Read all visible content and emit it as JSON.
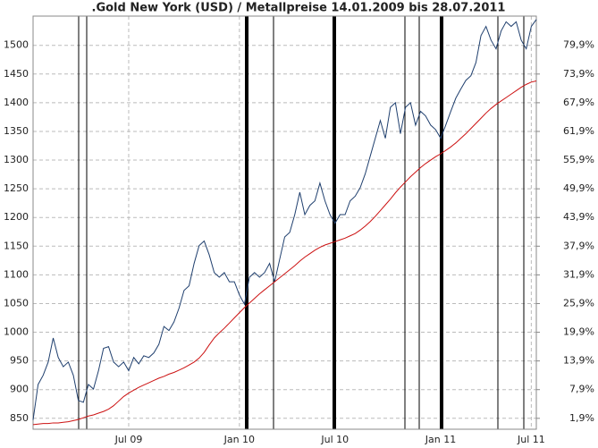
{
  "chart_data": {
    "type": "line",
    "title": ".Gold New York (USD) / Metallpreise 14.01.2009 bis 28.07.2011",
    "categories": [
      null,
      null,
      null,
      null,
      null,
      null,
      null,
      null,
      null,
      null,
      null,
      null,
      null,
      null,
      null,
      null,
      null,
      null,
      null,
      "Jul 09",
      null,
      null,
      null,
      null,
      null,
      null,
      null,
      null,
      null,
      null,
      null,
      null,
      null,
      null,
      null,
      null,
      null,
      null,
      null,
      null,
      null,
      "Jan 10",
      null,
      null,
      null,
      null,
      null,
      null,
      null,
      null,
      null,
      null,
      null,
      null,
      null,
      null,
      null,
      null,
      null,
      null,
      "Jul 10",
      null,
      null,
      null,
      null,
      null,
      null,
      null,
      null,
      null,
      null,
      null,
      null,
      null,
      null,
      null,
      null,
      null,
      null,
      null,
      null,
      "Jan 11",
      null,
      null,
      null,
      null,
      null,
      null,
      null,
      null,
      null,
      null,
      null,
      null,
      null,
      null,
      null,
      null,
      null,
      "Jul 11",
      null
    ],
    "series": [
      {
        "color": "#1f3f6e",
        "values": [
          847,
          909,
          925,
          948,
          990,
          956,
          940,
          948,
          925,
          881,
          878,
          909,
          901,
          933,
          972,
          975,
          948,
          940,
          948,
          933,
          956,
          945,
          959,
          956,
          964,
          979,
          1010,
          1003,
          1018,
          1042,
          1073,
          1081,
          1120,
          1151,
          1159,
          1135,
          1104,
          1096,
          1104,
          1088,
          1088,
          1065,
          1049,
          1096,
          1104,
          1096,
          1104,
          1120,
          1088,
          1127,
          1166,
          1174,
          1205,
          1244,
          1205,
          1221,
          1229,
          1260,
          1229,
          1205,
          1190,
          1205,
          1205,
          1229,
          1237,
          1252,
          1276,
          1307,
          1338,
          1369,
          1338,
          1392,
          1400,
          1346,
          1392,
          1400,
          1361,
          1385,
          1377,
          1361,
          1353,
          1338,
          1361,
          1385,
          1408,
          1424,
          1439,
          1447,
          1470,
          1517,
          1533,
          1509,
          1494,
          1525,
          1541,
          1533,
          1541,
          1509,
          1494,
          1533,
          1545
        ]
      },
      {
        "color": "#cc1111",
        "values": [
          839,
          840,
          841,
          841,
          842,
          842,
          843,
          844,
          846,
          848,
          851,
          854,
          856,
          859,
          862,
          866,
          872,
          880,
          888,
          894,
          899,
          904,
          908,
          912,
          916,
          920,
          923,
          927,
          930,
          934,
          938,
          943,
          948,
          955,
          965,
          978,
          990,
          999,
          1007,
          1016,
          1025,
          1034,
          1043,
          1051,
          1059,
          1067,
          1074,
          1081,
          1088,
          1095,
          1102,
          1109,
          1116,
          1124,
          1131,
          1137,
          1143,
          1148,
          1152,
          1155,
          1158,
          1161,
          1164,
          1168,
          1172,
          1178,
          1185,
          1193,
          1202,
          1212,
          1222,
          1232,
          1243,
          1253,
          1262,
          1271,
          1279,
          1287,
          1294,
          1300,
          1306,
          1311,
          1317,
          1323,
          1330,
          1338,
          1346,
          1355,
          1364,
          1373,
          1382,
          1390,
          1397,
          1403,
          1409,
          1415,
          1421,
          1427,
          1432,
          1436,
          1438
        ]
      }
    ],
    "ylim": [
      831,
      1551
    ],
    "yticks": [
      850,
      900,
      950,
      1000,
      1050,
      1100,
      1150,
      1200,
      1250,
      1300,
      1350,
      1400,
      1450,
      1500
    ],
    "y2lim": [
      -0.38,
      86.02
    ],
    "y2ticks": [
      {
        "value": 1.9,
        "label": "1,9%"
      },
      {
        "value": 7.9,
        "label": "7,9%"
      },
      {
        "value": 13.9,
        "label": "13,9%"
      },
      {
        "value": 19.9,
        "label": "19,9%"
      },
      {
        "value": 25.9,
        "label": "25,9%"
      },
      {
        "value": 31.9,
        "label": "31,9%"
      },
      {
        "value": 37.9,
        "label": "37,9%"
      },
      {
        "value": 43.9,
        "label": "43,9%"
      },
      {
        "value": 49.9,
        "label": "49,9%"
      },
      {
        "value": 55.9,
        "label": "55,9%"
      },
      {
        "value": 61.9,
        "label": "61,9%"
      },
      {
        "value": 67.9,
        "label": "67,9%"
      },
      {
        "value": 73.9,
        "label": "73,9%"
      },
      {
        "value": 79.9,
        "label": "79,9%"
      }
    ],
    "grid": true
  }
}
